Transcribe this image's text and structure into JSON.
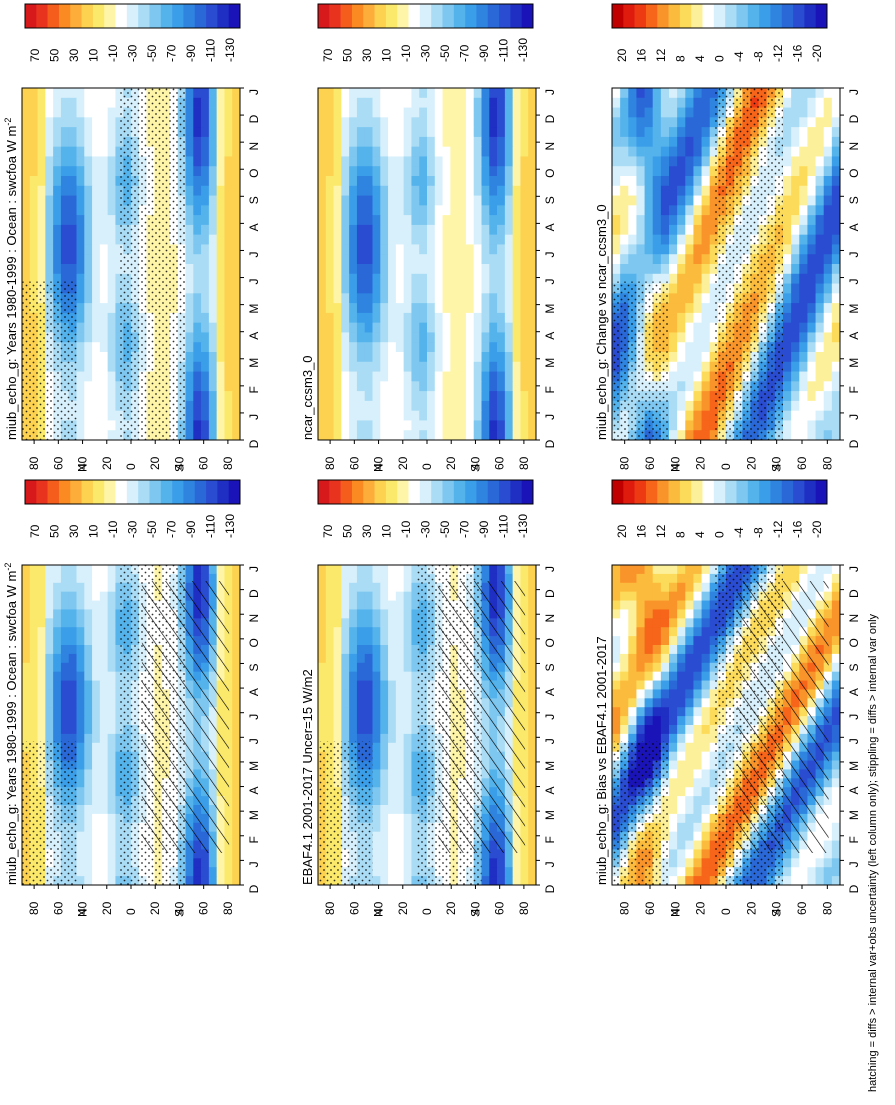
{
  "chart_data": [
    {
      "type": "heatmap",
      "title": "miub_echo_g: Years 1980-1999 : Ocean : swcfoa W m",
      "title_superscript": "-2",
      "months": [
        "D",
        "J",
        "F",
        "M",
        "A",
        "M",
        "J",
        "J",
        "A",
        "S",
        "O",
        "N",
        "D",
        "J"
      ],
      "lat_ticks": [
        "80",
        "60",
        "40",
        "20",
        "0",
        "20",
        "40",
        "60",
        "80"
      ],
      "lat_hemi": [
        "N",
        "S"
      ],
      "colorbar_labels": [
        "70",
        "50",
        "30",
        "10",
        "-10",
        "-30",
        "-50",
        "-70",
        "-90",
        "-110",
        "-130"
      ],
      "overlays": [
        "stippling",
        "hatching"
      ],
      "range": [
        -140,
        80
      ]
    },
    {
      "type": "heatmap",
      "title": "miub_echo_g: Years 1980-1999 : Ocean : swcfoa W m",
      "title_superscript": "-2",
      "months": [
        "D",
        "J",
        "F",
        "M",
        "A",
        "M",
        "J",
        "J",
        "A",
        "S",
        "O",
        "N",
        "D",
        "J"
      ],
      "lat_ticks": [
        "80",
        "60",
        "40",
        "20",
        "0",
        "20",
        "40",
        "60",
        "80"
      ],
      "lat_hemi": [
        "N",
        "S"
      ],
      "colorbar_labels": [
        "70",
        "50",
        "30",
        "10",
        "-10",
        "-30",
        "-50",
        "-70",
        "-90",
        "-110",
        "-130"
      ],
      "overlays": [
        "stippling"
      ],
      "range": [
        -140,
        80
      ]
    },
    {
      "type": "heatmap",
      "title": "EBAF4.1 2001-2017 Uncer=15 W/m2",
      "months": [
        "D",
        "J",
        "F",
        "M",
        "A",
        "M",
        "J",
        "J",
        "A",
        "S",
        "O",
        "N",
        "D",
        "J"
      ],
      "lat_ticks": [
        "80",
        "60",
        "40",
        "20",
        "0",
        "20",
        "40",
        "60",
        "80"
      ],
      "lat_hemi": [
        "N",
        "S"
      ],
      "colorbar_labels": [
        "70",
        "50",
        "30",
        "10",
        "-10",
        "-30",
        "-50",
        "-70",
        "-90",
        "-110",
        "-130"
      ],
      "overlays": [
        "stippling",
        "hatching"
      ],
      "range": [
        -140,
        80
      ]
    },
    {
      "type": "heatmap",
      "title": "ncar_ccsm3_0",
      "months": [
        "D",
        "J",
        "F",
        "M",
        "A",
        "M",
        "J",
        "J",
        "A",
        "S",
        "O",
        "N",
        "D",
        "J"
      ],
      "lat_ticks": [
        "80",
        "60",
        "40",
        "20",
        "0",
        "20",
        "40",
        "60",
        "80"
      ],
      "lat_hemi": [
        "N",
        "S"
      ],
      "colorbar_labels": [
        "70",
        "50",
        "30",
        "10",
        "-10",
        "-30",
        "-50",
        "-70",
        "-90",
        "-110",
        "-130"
      ],
      "overlays": [],
      "range": [
        -140,
        80
      ]
    },
    {
      "type": "heatmap",
      "title": "miub_echo_g: Bias vs EBAF4.1 2001-2017",
      "months": [
        "D",
        "J",
        "F",
        "M",
        "A",
        "M",
        "J",
        "J",
        "A",
        "S",
        "O",
        "N",
        "D",
        "J"
      ],
      "lat_ticks": [
        "80",
        "60",
        "40",
        "20",
        "0",
        "20",
        "40",
        "60",
        "80"
      ],
      "lat_hemi": [
        "N",
        "S"
      ],
      "colorbar_labels": [
        "20",
        "16",
        "12",
        "8",
        "4",
        "0",
        "-4",
        "-8",
        "-12",
        "-16",
        "-20"
      ],
      "overlays": [
        "stippling",
        "hatching"
      ],
      "range": [
        -22,
        22
      ]
    },
    {
      "type": "heatmap",
      "title": "miub_echo_g: Change vs ncar_ccsm3_0",
      "months": [
        "D",
        "J",
        "F",
        "M",
        "A",
        "M",
        "J",
        "J",
        "A",
        "S",
        "O",
        "N",
        "D",
        "J"
      ],
      "lat_ticks": [
        "80",
        "60",
        "40",
        "20",
        "0",
        "20",
        "40",
        "60",
        "80"
      ],
      "lat_hemi": [
        "N",
        "S"
      ],
      "colorbar_labels": [
        "20",
        "16",
        "12",
        "8",
        "4",
        "0",
        "-4",
        "-8",
        "-12",
        "-16",
        "-20"
      ],
      "overlays": [
        "stippling"
      ],
      "range": [
        -22,
        22
      ]
    }
  ],
  "footer": "hatching = diffs > internal var+obs uncertainty (left column only); stippling = diffs > internal var only",
  "palette": {
    "mean": [
      "#d7191c",
      "#e8331f",
      "#f45d1c",
      "#fb8a22",
      "#fdae3a",
      "#fcd250",
      "#fbe96c",
      "#fff5a8",
      "#ffffff",
      "#d8f0fb",
      "#aadcf5",
      "#7ec7f0",
      "#55b3ec",
      "#3b9ee8",
      "#2f84e0",
      "#2a68d8",
      "#2a4cd0",
      "#1f2fc4",
      "#1a14b8"
    ],
    "diff": [
      "#c00000",
      "#de1b0c",
      "#ee3a12",
      "#f6651a",
      "#f9942a",
      "#fbbb3d",
      "#fddb5a",
      "#fdf09a",
      "#ffffff",
      "#d8f0fb",
      "#aadcf5",
      "#7ec7f0",
      "#55b3ec",
      "#3b9ee8",
      "#2f84e0",
      "#2a68d8",
      "#2a4cd0",
      "#1f2fc4",
      "#1a14b8"
    ]
  }
}
